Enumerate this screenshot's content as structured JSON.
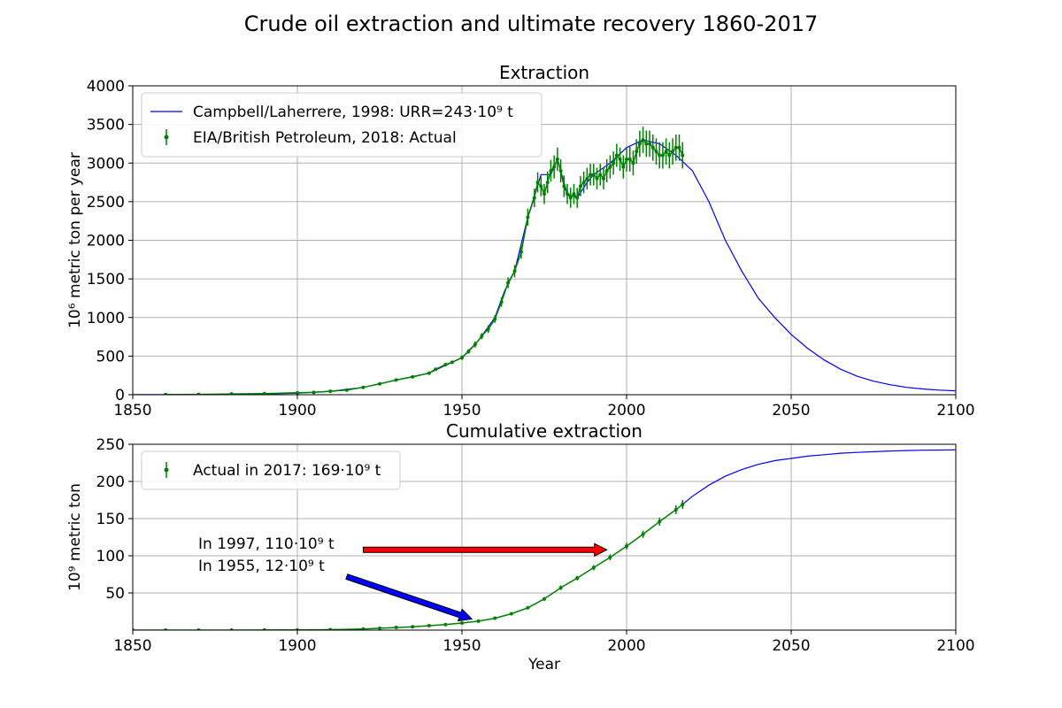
{
  "figure": {
    "title": "Crude oil extraction and ultimate recovery 1860-2017"
  },
  "chart_data": [
    {
      "type": "line",
      "title": "Extraction",
      "xlabel": "",
      "ylabel": "10⁶ metric ton per year",
      "xlim": [
        1850,
        2100
      ],
      "ylim": [
        0,
        4000
      ],
      "xticks": [
        "1850",
        "1900",
        "1950",
        "2000",
        "2050",
        "2100"
      ],
      "yticks": [
        "0",
        "500",
        "1000",
        "1500",
        "2000",
        "2500",
        "3000",
        "3500",
        "4000"
      ],
      "grid": true,
      "legend_position": "top-left",
      "colors": {
        "model": "#0000ff",
        "actual": "#008000"
      },
      "series": [
        {
          "name": "Campbell/Laherrere, 1998: URR=243·10⁹ t",
          "kind": "line",
          "x": [
            1850,
            1860,
            1870,
            1880,
            1890,
            1900,
            1910,
            1920,
            1930,
            1940,
            1945,
            1950,
            1955,
            1960,
            1963,
            1966,
            1970,
            1974,
            1977,
            1979,
            1982,
            1985,
            1988,
            1990,
            1995,
            2000,
            2005,
            2010,
            2015,
            2020,
            2025,
            2030,
            2035,
            2040,
            2045,
            2050,
            2055,
            2060,
            2065,
            2070,
            2075,
            2080,
            2085,
            2090,
            2095,
            2100
          ],
          "values": [
            2,
            2,
            3,
            5,
            10,
            20,
            45,
            95,
            190,
            280,
            380,
            480,
            700,
            1000,
            1350,
            1600,
            2300,
            2850,
            2850,
            3050,
            2600,
            2550,
            2750,
            2850,
            3000,
            3200,
            3300,
            3250,
            3100,
            2900,
            2500,
            2000,
            1600,
            1250,
            1000,
            780,
            600,
            450,
            330,
            240,
            175,
            130,
            95,
            75,
            60,
            50
          ]
        },
        {
          "name": "EIA/British Petroleum, 2018: Actual",
          "kind": "errorbar",
          "x": [
            1860,
            1870,
            1880,
            1890,
            1900,
            1905,
            1910,
            1915,
            1920,
            1925,
            1930,
            1935,
            1940,
            1942,
            1945,
            1947,
            1950,
            1952,
            1954,
            1956,
            1958,
            1960,
            1962,
            1964,
            1966,
            1968,
            1970,
            1972,
            1973,
            1974,
            1975,
            1976,
            1977,
            1978,
            1979,
            1980,
            1981,
            1982,
            1983,
            1984,
            1985,
            1986,
            1987,
            1988,
            1989,
            1990,
            1991,
            1992,
            1993,
            1994,
            1995,
            1996,
            1997,
            1998,
            1999,
            2000,
            2001,
            2002,
            2003,
            2004,
            2005,
            2006,
            2007,
            2008,
            2009,
            2010,
            2011,
            2012,
            2013,
            2014,
            2015,
            2016,
            2017
          ],
          "values": [
            1,
            5,
            10,
            15,
            25,
            30,
            45,
            60,
            95,
            140,
            190,
            230,
            280,
            330,
            390,
            420,
            480,
            560,
            650,
            760,
            850,
            980,
            1200,
            1450,
            1600,
            1850,
            2300,
            2550,
            2750,
            2700,
            2600,
            2750,
            2900,
            2950,
            3050,
            2900,
            2700,
            2600,
            2550,
            2600,
            2550,
            2700,
            2750,
            2800,
            2850,
            2850,
            2800,
            2850,
            2800,
            2900,
            2950,
            3000,
            3100,
            3050,
            2950,
            3050,
            3050,
            3000,
            3150,
            3250,
            3300,
            3250,
            3250,
            3200,
            3150,
            3100,
            3100,
            3150,
            3100,
            3150,
            3200,
            3200,
            3100
          ],
          "yerr": [
            5,
            5,
            5,
            5,
            5,
            5,
            5,
            5,
            10,
            10,
            10,
            10,
            15,
            15,
            20,
            20,
            30,
            30,
            40,
            40,
            50,
            50,
            60,
            70,
            80,
            90,
            110,
            120,
            130,
            130,
            130,
            140,
            140,
            150,
            150,
            150,
            140,
            130,
            130,
            130,
            130,
            130,
            140,
            140,
            140,
            140,
            140,
            140,
            140,
            150,
            150,
            150,
            150,
            150,
            150,
            160,
            160,
            160,
            160,
            170,
            170,
            170,
            170,
            170,
            170,
            170,
            170,
            170,
            170,
            170,
            170,
            170,
            170
          ]
        }
      ]
    },
    {
      "type": "line",
      "title": "Cumulative extraction",
      "xlabel": "Year",
      "ylabel": "10⁹ metric ton",
      "xlim": [
        1850,
        2100
      ],
      "ylim": [
        0,
        250
      ],
      "xticks": [
        "1850",
        "1900",
        "1950",
        "2000",
        "2050",
        "2100"
      ],
      "yticks": [
        "50",
        "100",
        "150",
        "200",
        "250"
      ],
      "grid": true,
      "legend_position": "top-left",
      "colors": {
        "model": "#0000ff",
        "actual": "#008000"
      },
      "series": [
        {
          "name": "",
          "kind": "line",
          "x": [
            2017,
            2020,
            2025,
            2030,
            2035,
            2040,
            2045,
            2050,
            2055,
            2060,
            2065,
            2070,
            2075,
            2080,
            2085,
            2090,
            2095,
            2100
          ],
          "values": [
            169,
            180,
            195,
            207,
            216,
            223,
            228,
            231,
            234,
            236,
            238,
            239,
            240,
            241,
            241.5,
            242,
            242.3,
            242.5
          ]
        },
        {
          "name": "Actual in 2017: 169·10⁹ t",
          "kind": "errorbar",
          "x": [
            1850,
            1860,
            1870,
            1880,
            1890,
            1900,
            1910,
            1920,
            1925,
            1930,
            1935,
            1940,
            1945,
            1950,
            1955,
            1960,
            1965,
            1970,
            1975,
            1980,
            1985,
            1990,
            1995,
            2000,
            2005,
            2010,
            2015,
            2017
          ],
          "values": [
            0,
            0,
            0,
            0,
            0.1,
            0.3,
            0.6,
            1.5,
            2.5,
            3.5,
            4.5,
            6,
            7.5,
            9.5,
            12,
            16,
            22,
            30,
            42,
            57,
            70,
            84,
            98,
            113,
            129,
            146,
            162,
            169
          ],
          "yerr": [
            0,
            0,
            0,
            0,
            0,
            0,
            0,
            0.3,
            0.3,
            0.4,
            0.5,
            0.6,
            0.8,
            1,
            1.2,
            1.5,
            1.8,
            2,
            2.5,
            3,
            3,
            3.5,
            4,
            4.5,
            5,
            5.5,
            6,
            6
          ]
        }
      ],
      "annotations": [
        {
          "text": "In 1997, 110·10⁹ t",
          "arrow_color": "#ff0000",
          "from": [
            1920,
            108
          ],
          "to": [
            1994,
            108
          ]
        },
        {
          "text": "In 1955, 12·10⁹ t",
          "arrow_color": "#0000ff",
          "from": [
            1915,
            72
          ],
          "to": [
            1953,
            15
          ]
        }
      ]
    }
  ]
}
